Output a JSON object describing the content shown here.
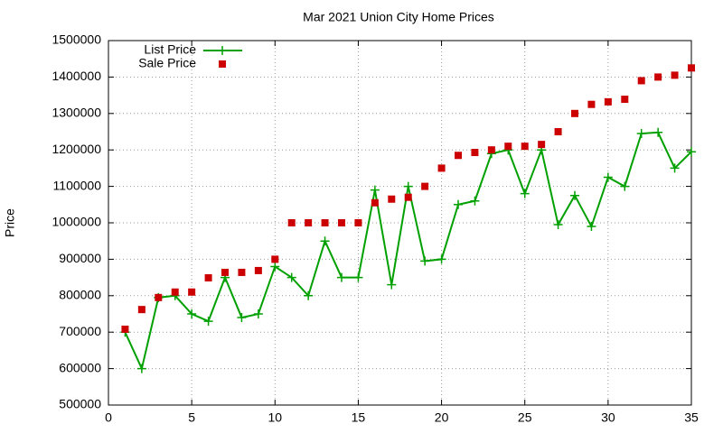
{
  "chart_data": {
    "type": "line",
    "title": "Mar 2021 Union City Home Prices",
    "ylabel": "Price",
    "x": [
      1,
      2,
      3,
      4,
      5,
      6,
      7,
      8,
      9,
      10,
      11,
      12,
      13,
      14,
      15,
      16,
      17,
      18,
      19,
      20,
      21,
      22,
      23,
      24,
      25,
      26,
      27,
      28,
      29,
      30,
      31,
      32,
      33,
      34,
      35
    ],
    "series": [
      {
        "name": "List Price",
        "color": "#00a000",
        "style": "linespoints",
        "values": [
          700000,
          600000,
          795000,
          800000,
          750000,
          730000,
          850000,
          740000,
          750000,
          880000,
          850000,
          800000,
          950000,
          850000,
          850000,
          1090000,
          830000,
          1100000,
          895000,
          900000,
          1050000,
          1060000,
          1190000,
          1200000,
          1080000,
          1200000,
          995000,
          1075000,
          990000,
          1125000,
          1100000,
          1245000,
          1248000,
          1150000,
          1195000
        ]
      },
      {
        "name": "Sale Price",
        "color": "#cc0000",
        "style": "points",
        "values": [
          708000,
          762000,
          795000,
          810000,
          810000,
          849000,
          864000,
          864000,
          869000,
          900000,
          1000000,
          1000000,
          1000000,
          1000000,
          1000000,
          1055000,
          1065000,
          1070000,
          1100000,
          1150000,
          1185000,
          1193000,
          1200000,
          1210000,
          1210000,
          1215000,
          1250000,
          1300000,
          1325000,
          1332000,
          1339000,
          1390000,
          1400000,
          1405000,
          1425000
        ]
      }
    ],
    "xlim": [
      0,
      35
    ],
    "xticks": [
      0,
      5,
      10,
      15,
      20,
      25,
      30,
      35
    ],
    "ylim": [
      500000,
      1500000
    ],
    "yticks": [
      500000,
      600000,
      700000,
      800000,
      900000,
      1000000,
      1100000,
      1200000,
      1300000,
      1400000,
      1500000
    ],
    "grid": true,
    "legend": "top-left"
  }
}
